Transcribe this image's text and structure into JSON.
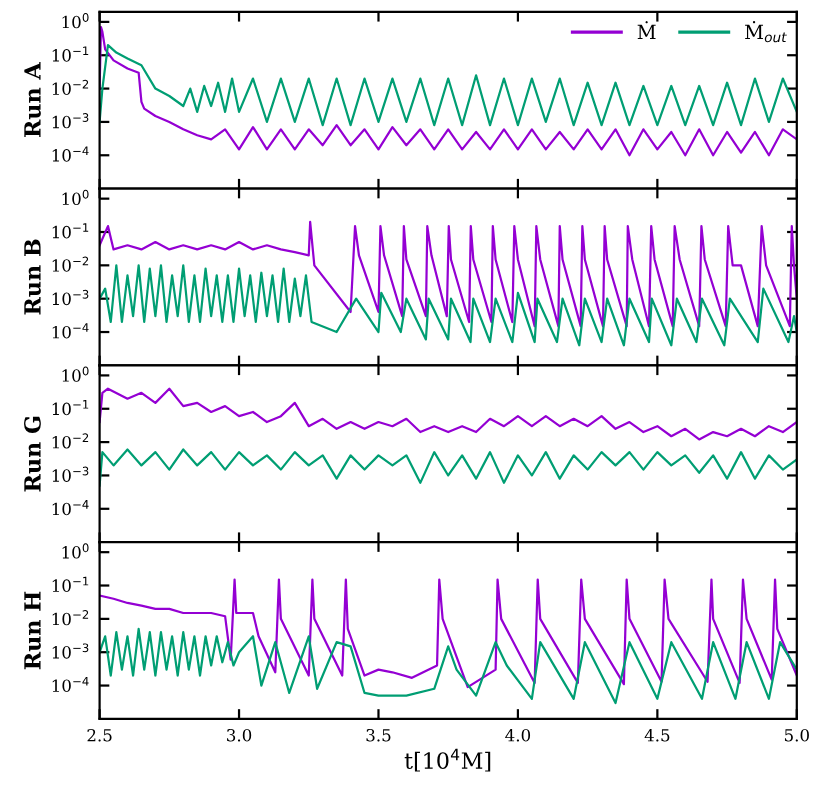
{
  "chart_data": [
    {
      "type": "line",
      "ylabel": "Run A",
      "log": "y",
      "legend": "top right",
      "grid": false,
      "tick_labels": "y",
      "xlim": [
        2.5,
        5.0
      ],
      "xticks": [
        2.5,
        3,
        3.5,
        4,
        4.5,
        5
      ],
      "ylim": [
        1e-05,
        2
      ],
      "yticks": [
        {
          "value": 1,
          "label": "10$^{0}$"
        },
        {
          "value": 0.1,
          "label": "10$^{−1}$"
        },
        {
          "value": 0.01,
          "label": "10$^{−2}$"
        },
        {
          "value": 0.001,
          "label": "10$^{−3}$"
        },
        {
          "value": 0.0001,
          "label": "10$^{−4}$"
        }
      ],
      "series": [
        {
          "name": "Ṁ",
          "color": "#9400d3",
          "x": [
            2.5,
            2.505,
            2.51,
            2.52,
            2.55,
            2.6,
            2.64,
            2.65,
            2.66,
            2.7,
            2.75,
            2.8,
            2.85,
            2.9,
            2.95,
            3.0,
            3.05,
            3.1,
            3.15,
            3.2,
            3.25,
            3.3,
            3.35,
            3.4,
            3.45,
            3.5,
            3.55,
            3.6,
            3.65,
            3.7,
            3.75,
            3.8,
            3.85,
            3.9,
            3.95,
            4.0,
            4.05,
            4.1,
            4.15,
            4.2,
            4.25,
            4.3,
            4.35,
            4.4,
            4.45,
            4.5,
            4.55,
            4.6,
            4.65,
            4.7,
            4.75,
            4.8,
            4.85,
            4.9,
            4.95,
            5.0
          ],
          "values": [
            0.01,
            0.7,
            0.5,
            0.15,
            0.07,
            0.04,
            0.03,
            0.004,
            0.0025,
            0.0015,
            0.001,
            0.0006,
            0.0004,
            0.0003,
            0.0006,
            0.00015,
            0.0007,
            0.00015,
            0.0006,
            0.00015,
            0.0006,
            0.0002,
            0.0008,
            0.0002,
            0.0006,
            0.00015,
            0.0007,
            0.0002,
            0.0006,
            0.00015,
            0.0006,
            0.00015,
            0.0005,
            0.00015,
            0.0006,
            0.00015,
            0.0006,
            0.00015,
            0.0005,
            0.00015,
            0.0006,
            0.00015,
            0.0006,
            0.0001,
            0.0006,
            0.00015,
            0.0005,
            0.0001,
            0.0006,
            0.0001,
            0.0005,
            0.00012,
            0.0005,
            0.0001,
            0.0006,
            0.0003
          ]
        },
        {
          "name": "Ṁ$_{out}$",
          "color": "#009e73",
          "x": [
            2.5,
            2.51,
            2.53,
            2.56,
            2.6,
            2.65,
            2.7,
            2.75,
            2.8,
            2.825,
            2.85,
            2.875,
            2.9,
            2.925,
            2.95,
            2.975,
            3.0,
            3.05,
            3.1,
            3.15,
            3.2,
            3.25,
            3.3,
            3.35,
            3.4,
            3.45,
            3.5,
            3.55,
            3.6,
            3.65,
            3.7,
            3.75,
            3.8,
            3.85,
            3.9,
            3.95,
            4.0,
            4.05,
            4.1,
            4.15,
            4.2,
            4.25,
            4.3,
            4.35,
            4.4,
            4.45,
            4.5,
            4.55,
            4.6,
            4.65,
            4.7,
            4.75,
            4.8,
            4.85,
            4.9,
            4.95,
            5.0
          ],
          "values": [
            0.001,
            0.01,
            0.2,
            0.12,
            0.08,
            0.05,
            0.01,
            0.006,
            0.003,
            0.01,
            0.002,
            0.012,
            0.003,
            0.015,
            0.002,
            0.02,
            0.002,
            0.02,
            0.001,
            0.02,
            0.001,
            0.02,
            0.0008,
            0.02,
            0.0008,
            0.02,
            0.001,
            0.02,
            0.001,
            0.02,
            0.0008,
            0.02,
            0.0008,
            0.025,
            0.0008,
            0.02,
            0.0008,
            0.02,
            0.001,
            0.02,
            0.0008,
            0.015,
            0.0008,
            0.015,
            0.0008,
            0.012,
            0.0008,
            0.012,
            0.0008,
            0.012,
            0.0008,
            0.015,
            0.0008,
            0.02,
            0.001,
            0.02,
            0.002
          ]
        }
      ]
    },
    {
      "type": "line",
      "ylabel": "Run B",
      "log": "y",
      "grid": false,
      "tick_labels": "y",
      "xlim": [
        2.5,
        5.0
      ],
      "xticks": [
        2.5,
        3,
        3.5,
        4,
        4.5,
        5
      ],
      "ylim": [
        1e-05,
        2
      ],
      "yticks": [
        {
          "value": 1,
          "label": "10$^{0}$"
        },
        {
          "value": 0.1,
          "label": "10$^{−1}$"
        },
        {
          "value": 0.01,
          "label": "10$^{−2}$"
        },
        {
          "value": 0.001,
          "label": "10$^{−3}$"
        },
        {
          "value": 0.0001,
          "label": "10$^{−4}$"
        }
      ],
      "series": [
        {
          "color": "#9400d3",
          "x": [
            2.5,
            2.53,
            2.55,
            2.6,
            2.65,
            2.7,
            2.75,
            2.8,
            2.85,
            2.9,
            2.95,
            3.0,
            3.05,
            3.1,
            3.15,
            3.2,
            3.25,
            3.255,
            3.27,
            3.4,
            3.416,
            3.43,
            3.5,
            3.507,
            3.52,
            3.585,
            3.591,
            3.6,
            3.67,
            3.675,
            3.69,
            3.745,
            3.752,
            3.76,
            3.825,
            3.831,
            3.84,
            3.905,
            3.91,
            3.92,
            3.98,
            3.987,
            4.0,
            4.06,
            4.066,
            4.08,
            4.145,
            4.15,
            4.16,
            4.225,
            4.231,
            4.24,
            4.305,
            4.311,
            4.32,
            4.39,
            4.394,
            4.41,
            4.47,
            4.478,
            4.49,
            4.555,
            4.562,
            4.58,
            4.65,
            4.658,
            4.67,
            4.745,
            4.754,
            4.77,
            4.8,
            4.86,
            4.874,
            4.89,
            4.975,
            4.982,
            4.99,
            5.0
          ],
          "values": [
            0.04,
            0.15,
            0.03,
            0.04,
            0.03,
            0.05,
            0.03,
            0.04,
            0.03,
            0.04,
            0.03,
            0.05,
            0.03,
            0.04,
            0.03,
            0.025,
            0.02,
            0.2,
            0.01,
            0.0004,
            0.15,
            0.02,
            0.0004,
            0.15,
            0.02,
            0.0003,
            0.15,
            0.015,
            0.0003,
            0.15,
            0.02,
            0.0003,
            0.15,
            0.015,
            0.0002,
            0.15,
            0.015,
            0.0002,
            0.15,
            0.015,
            0.0002,
            0.15,
            0.015,
            0.00015,
            0.15,
            0.015,
            0.00015,
            0.15,
            0.015,
            0.00015,
            0.15,
            0.015,
            0.00015,
            0.15,
            0.015,
            0.00015,
            0.15,
            0.015,
            0.00015,
            0.15,
            0.015,
            0.00015,
            0.15,
            0.015,
            0.00015,
            0.15,
            0.015,
            0.00015,
            0.15,
            0.01,
            0.01,
            0.00015,
            0.15,
            0.01,
            0.00015,
            0.15,
            0.01,
            0.001
          ]
        },
        {
          "color": "#009e73",
          "x": [
            2.5,
            2.52,
            2.54,
            2.56,
            2.58,
            2.6,
            2.62,
            2.64,
            2.66,
            2.68,
            2.7,
            2.72,
            2.74,
            2.76,
            2.78,
            2.8,
            2.82,
            2.84,
            2.86,
            2.88,
            2.9,
            2.92,
            2.94,
            2.96,
            2.98,
            3.0,
            3.02,
            3.04,
            3.06,
            3.08,
            3.1,
            3.12,
            3.14,
            3.16,
            3.18,
            3.2,
            3.22,
            3.24,
            3.26,
            3.35,
            3.42,
            3.5,
            3.51,
            3.58,
            3.6,
            3.67,
            3.68,
            3.75,
            3.76,
            3.83,
            3.84,
            3.9,
            3.92,
            3.98,
            4.0,
            4.06,
            4.07,
            4.14,
            4.16,
            4.22,
            4.24,
            4.3,
            4.32,
            4.38,
            4.4,
            4.47,
            4.48,
            4.55,
            4.57,
            4.64,
            4.66,
            4.74,
            4.76,
            4.86,
            4.88,
            4.97,
            4.99,
            5.0
          ],
          "values": [
            0.001,
            0.002,
            0.0002,
            0.01,
            0.0002,
            0.005,
            0.0003,
            0.01,
            0.0002,
            0.008,
            0.0003,
            0.01,
            0.0002,
            0.005,
            0.0003,
            0.01,
            0.0002,
            0.005,
            0.0002,
            0.008,
            0.0003,
            0.005,
            0.0002,
            0.005,
            0.0002,
            0.008,
            0.0003,
            0.005,
            0.0002,
            0.006,
            0.0003,
            0.005,
            0.0002,
            0.008,
            0.0002,
            0.004,
            0.0003,
            0.005,
            0.0002,
            0.0001,
            0.001,
            0.0001,
            0.0015,
            0.0001,
            0.001,
            6e-05,
            0.001,
            6e-05,
            0.001,
            5e-05,
            0.001,
            5e-05,
            0.001,
            5e-05,
            0.0015,
            5e-05,
            0.001,
            5e-05,
            0.001,
            4e-05,
            0.001,
            5e-05,
            0.001,
            4e-05,
            0.001,
            5e-05,
            0.001,
            4e-05,
            0.001,
            5e-05,
            0.001,
            4e-05,
            0.001,
            5e-05,
            0.002,
            5e-05,
            0.0003,
            0.0001
          ]
        }
      ]
    },
    {
      "type": "line",
      "ylabel": "Run G",
      "log": "y",
      "grid": false,
      "tick_labels": "y",
      "xlim": [
        2.5,
        5.0
      ],
      "xticks": [
        2.5,
        3,
        3.5,
        4,
        4.5,
        5
      ],
      "ylim": [
        1e-05,
        2
      ],
      "yticks": [
        {
          "value": 1,
          "label": "10$^{0}$"
        },
        {
          "value": 0.1,
          "label": "10$^{−1}$"
        },
        {
          "value": 0.01,
          "label": "10$^{−2}$"
        },
        {
          "value": 0.001,
          "label": "10$^{−3}$"
        },
        {
          "value": 0.0001,
          "label": "10$^{−4}$"
        }
      ],
      "series": [
        {
          "color": "#9400d3",
          "x": [
            2.5,
            2.51,
            2.53,
            2.6,
            2.65,
            2.7,
            2.75,
            2.8,
            2.85,
            2.9,
            2.95,
            3.0,
            3.05,
            3.1,
            3.15,
            3.2,
            3.25,
            3.3,
            3.35,
            3.4,
            3.45,
            3.5,
            3.55,
            3.6,
            3.65,
            3.7,
            3.75,
            3.8,
            3.85,
            3.9,
            3.95,
            4.0,
            4.05,
            4.1,
            4.15,
            4.2,
            4.25,
            4.3,
            4.35,
            4.4,
            4.45,
            4.5,
            4.55,
            4.6,
            4.65,
            4.7,
            4.75,
            4.8,
            4.85,
            4.9,
            4.95,
            5.0
          ],
          "values": [
            0.04,
            0.3,
            0.4,
            0.2,
            0.3,
            0.15,
            0.4,
            0.12,
            0.15,
            0.08,
            0.12,
            0.06,
            0.08,
            0.04,
            0.06,
            0.15,
            0.03,
            0.05,
            0.025,
            0.04,
            0.025,
            0.04,
            0.03,
            0.05,
            0.02,
            0.03,
            0.02,
            0.03,
            0.02,
            0.05,
            0.03,
            0.06,
            0.03,
            0.06,
            0.03,
            0.05,
            0.03,
            0.06,
            0.025,
            0.04,
            0.02,
            0.03,
            0.015,
            0.025,
            0.012,
            0.02,
            0.015,
            0.025,
            0.015,
            0.03,
            0.02,
            0.04
          ]
        },
        {
          "color": "#009e73",
          "x": [
            2.5,
            2.51,
            2.55,
            2.6,
            2.65,
            2.7,
            2.75,
            2.8,
            2.85,
            2.9,
            2.95,
            3.0,
            3.05,
            3.1,
            3.15,
            3.2,
            3.25,
            3.3,
            3.35,
            3.4,
            3.45,
            3.5,
            3.55,
            3.6,
            3.65,
            3.7,
            3.75,
            3.8,
            3.85,
            3.9,
            3.95,
            4.0,
            4.05,
            4.1,
            4.15,
            4.2,
            4.25,
            4.3,
            4.35,
            4.4,
            4.45,
            4.5,
            4.55,
            4.6,
            4.65,
            4.7,
            4.75,
            4.8,
            4.85,
            4.9,
            4.95,
            5.0
          ],
          "values": [
            0.0005,
            0.005,
            0.002,
            0.006,
            0.002,
            0.005,
            0.0015,
            0.006,
            0.002,
            0.005,
            0.0015,
            0.005,
            0.002,
            0.004,
            0.0015,
            0.005,
            0.002,
            0.004,
            0.0008,
            0.004,
            0.0015,
            0.004,
            0.002,
            0.004,
            0.0006,
            0.005,
            0.001,
            0.004,
            0.0008,
            0.005,
            0.0006,
            0.004,
            0.001,
            0.005,
            0.0008,
            0.004,
            0.0015,
            0.005,
            0.002,
            0.005,
            0.0015,
            0.005,
            0.002,
            0.004,
            0.0012,
            0.004,
            0.0008,
            0.005,
            0.0008,
            0.004,
            0.0015,
            0.003
          ]
        }
      ]
    },
    {
      "type": "line",
      "ylabel": "Run H",
      "xlabel": "t[10$^{4}$M]",
      "log": "y",
      "grid": false,
      "xlim": [
        2.5,
        5.0
      ],
      "xticks": [
        2.5,
        {
          "value": 3,
          "label": "3.0"
        },
        3.5,
        {
          "value": 4,
          "label": "4.0"
        },
        4.5,
        {
          "value": 5,
          "label": "5.0"
        }
      ],
      "ylim": [
        1e-05,
        2
      ],
      "yticks": [
        {
          "value": 1,
          "label": "10$^{0}$"
        },
        {
          "value": 0.1,
          "label": "10$^{−1}$"
        },
        {
          "value": 0.01,
          "label": "10$^{−2}$"
        },
        {
          "value": 0.001,
          "label": "10$^{−3}$"
        },
        {
          "value": 0.0001,
          "label": "10$^{−4}$"
        }
      ],
      "series": [
        {
          "color": "#9400d3",
          "x": [
            2.5,
            2.55,
            2.6,
            2.65,
            2.7,
            2.75,
            2.8,
            2.85,
            2.9,
            2.95,
            2.97,
            2.984,
            2.99,
            3.05,
            3.07,
            3.13,
            3.143,
            3.15,
            3.25,
            3.263,
            3.27,
            3.37,
            3.383,
            3.39,
            3.45,
            3.5,
            3.55,
            3.62,
            3.71,
            3.718,
            3.73,
            3.82,
            3.92,
            3.927,
            3.94,
            4.06,
            4.071,
            4.08,
            4.215,
            4.227,
            4.24,
            4.38,
            4.39,
            4.4,
            4.515,
            4.526,
            4.54,
            4.68,
            4.694,
            4.7,
            4.795,
            4.807,
            4.82,
            4.91,
            4.922,
            4.93,
            5.0
          ],
          "values": [
            0.05,
            0.04,
            0.03,
            0.025,
            0.02,
            0.02,
            0.015,
            0.015,
            0.015,
            0.012,
            0.0006,
            0.15,
            0.015,
            0.015,
            0.003,
            0.00025,
            0.15,
            0.01,
            0.0002,
            0.15,
            0.01,
            0.0002,
            0.15,
            0.005,
            0.0002,
            0.0003,
            0.00025,
            0.00017,
            0.0004,
            0.15,
            0.01,
            9e-05,
            0.0003,
            0.15,
            0.01,
            0.00012,
            0.15,
            0.01,
            0.00012,
            0.15,
            0.01,
            0.00011,
            0.15,
            0.01,
            0.00013,
            0.15,
            0.01,
            0.00013,
            0.15,
            0.01,
            0.00012,
            0.15,
            0.01,
            0.00015,
            0.15,
            0.005,
            0.0002
          ]
        },
        {
          "color": "#009e73",
          "x": [
            2.5,
            2.52,
            2.54,
            2.56,
            2.58,
            2.6,
            2.62,
            2.64,
            2.66,
            2.68,
            2.7,
            2.72,
            2.74,
            2.76,
            2.78,
            2.8,
            2.82,
            2.84,
            2.86,
            2.88,
            2.9,
            2.92,
            2.94,
            2.96,
            2.98,
            3.0,
            3.05,
            3.08,
            3.13,
            3.18,
            3.25,
            3.28,
            3.35,
            3.4,
            3.45,
            3.5,
            3.6,
            3.7,
            3.75,
            3.78,
            3.85,
            3.92,
            3.96,
            4.05,
            4.08,
            4.2,
            4.24,
            4.35,
            4.4,
            4.5,
            4.55,
            4.66,
            4.7,
            4.78,
            4.82,
            4.9,
            4.94,
            5.0
          ],
          "values": [
            0.001,
            0.003,
            0.0002,
            0.004,
            0.0003,
            0.003,
            0.0002,
            0.005,
            0.0003,
            0.004,
            0.0002,
            0.004,
            0.0003,
            0.003,
            0.0002,
            0.004,
            0.0003,
            0.003,
            0.0002,
            0.003,
            0.0004,
            0.003,
            0.0005,
            0.002,
            0.0004,
            0.001,
            0.003,
            0.0001,
            0.002,
            6e-05,
            0.003,
            8e-05,
            0.002,
            0.0015,
            6e-05,
            5e-05,
            5e-05,
            8e-05,
            0.0015,
            0.0003,
            5e-05,
            0.002,
            0.0004,
            4e-05,
            0.002,
            4e-05,
            0.002,
            3e-05,
            0.002,
            4e-05,
            0.002,
            4e-05,
            0.002,
            4e-05,
            0.002,
            4e-05,
            0.002,
            0.0003
          ]
        }
      ]
    }
  ]
}
